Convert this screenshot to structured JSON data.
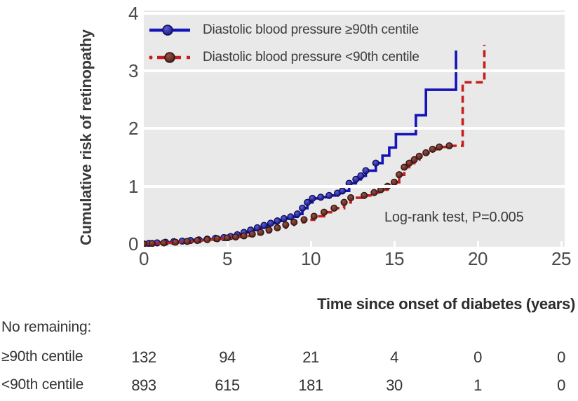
{
  "chart_data": {
    "type": "line",
    "subtype": "kaplan-meier-cumulative-incidence-step",
    "title": "",
    "xlabel": "Time since onset of diabetes (years)",
    "ylabel": "Cumulative risk of retinopathy",
    "annotation": "Log-rank test, P=0.005",
    "xlim": [
      0,
      25
    ],
    "ylim": [
      0,
      4
    ],
    "xticks": [
      0,
      5,
      10,
      15,
      20,
      25
    ],
    "yticks": [
      0,
      1,
      2,
      3,
      4
    ],
    "grid": "white horizontal lines at integer y values on grey panel",
    "legend_position": "top-left inside plot",
    "colors": {
      "panel_bg": "#e9e9e9",
      "gridline": "#ffffff",
      "blue_line": "#1414b8",
      "blue_marker_center": "#5a5ae0",
      "blue_marker_edge": "#14147a",
      "blue_marker_stroke": "#0d0d4d",
      "red_line": "#c51f1b",
      "red_marker_center": "#9a4f44",
      "red_marker_edge": "#46201b",
      "red_marker_stroke": "#2f1511",
      "text": "#3c3c3c"
    },
    "series": [
      {
        "name": "Diastolic blood pressure ≥90th centile",
        "style": "solid",
        "color": "#1414b8",
        "markers_until_x": 14.0,
        "points": [
          [
            0,
            0
          ],
          [
            0.3,
            0.01
          ],
          [
            0.8,
            0.02
          ],
          [
            1.3,
            0.03
          ],
          [
            1.8,
            0.04
          ],
          [
            2.3,
            0.05
          ],
          [
            2.8,
            0.06
          ],
          [
            3.3,
            0.07
          ],
          [
            3.8,
            0.085
          ],
          [
            4.3,
            0.1
          ],
          [
            4.8,
            0.11
          ],
          [
            5.2,
            0.13
          ],
          [
            5.6,
            0.16
          ],
          [
            6.0,
            0.2
          ],
          [
            6.4,
            0.24
          ],
          [
            6.8,
            0.28
          ],
          [
            7.2,
            0.32
          ],
          [
            7.6,
            0.36
          ],
          [
            8.0,
            0.4
          ],
          [
            8.4,
            0.44
          ],
          [
            8.8,
            0.47
          ],
          [
            9.2,
            0.52
          ],
          [
            9.5,
            0.62
          ],
          [
            9.8,
            0.72
          ],
          [
            10.1,
            0.79
          ],
          [
            10.6,
            0.81
          ],
          [
            11.1,
            0.84
          ],
          [
            11.6,
            0.88
          ],
          [
            11.9,
            0.92
          ],
          [
            12.3,
            1.05
          ],
          [
            12.7,
            1.12
          ],
          [
            13.0,
            1.18
          ],
          [
            13.3,
            1.27
          ],
          [
            13.9,
            1.4
          ],
          [
            14.3,
            1.53
          ],
          [
            14.7,
            1.67
          ],
          [
            15.1,
            1.9
          ],
          [
            16.3,
            2.23
          ],
          [
            16.9,
            2.67
          ],
          [
            18.7,
            3.35
          ]
        ]
      },
      {
        "name": "Diastolic blood pressure <90th centile",
        "style": "dashed",
        "color": "#c51f1b",
        "markers_until_x": 18.4,
        "points": [
          [
            0,
            0
          ],
          [
            0.5,
            0.01
          ],
          [
            1.2,
            0.02
          ],
          [
            1.9,
            0.03
          ],
          [
            2.6,
            0.045
          ],
          [
            3.2,
            0.06
          ],
          [
            3.8,
            0.075
          ],
          [
            4.4,
            0.09
          ],
          [
            5.0,
            0.105
          ],
          [
            5.5,
            0.12
          ],
          [
            6.0,
            0.14
          ],
          [
            6.5,
            0.17
          ],
          [
            7.0,
            0.2
          ],
          [
            7.5,
            0.24
          ],
          [
            8.0,
            0.28
          ],
          [
            8.5,
            0.33
          ],
          [
            9.0,
            0.375
          ],
          [
            9.6,
            0.42
          ],
          [
            10.2,
            0.48
          ],
          [
            10.8,
            0.55
          ],
          [
            11.4,
            0.62
          ],
          [
            12.0,
            0.72
          ],
          [
            12.4,
            0.8
          ],
          [
            13.2,
            0.84
          ],
          [
            13.8,
            0.89
          ],
          [
            14.2,
            0.94
          ],
          [
            14.6,
            1.0
          ],
          [
            15.0,
            1.07
          ],
          [
            15.3,
            1.2
          ],
          [
            15.6,
            1.33
          ],
          [
            15.9,
            1.4
          ],
          [
            16.2,
            1.46
          ],
          [
            16.5,
            1.52
          ],
          [
            16.9,
            1.58
          ],
          [
            17.3,
            1.64
          ],
          [
            17.7,
            1.68
          ],
          [
            18.3,
            1.7
          ],
          [
            19.1,
            2.8
          ],
          [
            20.4,
            3.45
          ]
        ]
      }
    ],
    "risk_table": {
      "heading": "No remaining:",
      "columns_at_x": [
        0,
        5,
        10,
        15,
        20,
        25
      ],
      "rows": [
        {
          "label": "≥90th centile",
          "values": [
            "132",
            "94",
            "21",
            "4",
            "0",
            "0"
          ]
        },
        {
          "label": "<90th centile",
          "values": [
            "893",
            "615",
            "181",
            "30",
            "1",
            "0"
          ]
        }
      ]
    }
  }
}
